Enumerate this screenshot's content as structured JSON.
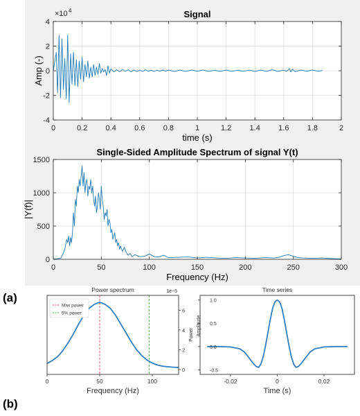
{
  "panel_labels": {
    "a": "(a)",
    "b": "(b)"
  },
  "colors": {
    "matlab_line": "#1f78b4",
    "mpl_line": "#2f7ebf",
    "max_power": "#e0445a",
    "five_pct_power": "#3ca63c",
    "grid": "#dedede",
    "panel_a_background": "#f0f0f0"
  },
  "chart_data": [
    {
      "id": "signal",
      "type": "line",
      "title": "Signal",
      "xlabel": "time (s)",
      "ylabel": "Amp (-)",
      "y_exponent_label": "×10",
      "y_exponent_power": "4",
      "xlim": [
        0,
        2
      ],
      "ylim": [
        -4,
        4
      ],
      "xticks": [
        0,
        0.2,
        0.4,
        0.6,
        0.8,
        1,
        1.2,
        1.4,
        1.6,
        1.8,
        2
      ],
      "xticklabels": [
        "0",
        "0.2",
        "0.4",
        "0.6",
        "0.8",
        "1",
        "1.2",
        "1.4",
        "1.6",
        "1.8",
        "2"
      ],
      "yticks": [
        -4,
        -2,
        0,
        2,
        4
      ],
      "yticklabels": [
        "-4",
        "-2",
        "0",
        "2",
        "4"
      ],
      "grid": true,
      "series": [
        {
          "x": [
            0.0,
            0.02,
            0.03,
            0.04,
            0.05,
            0.06,
            0.07,
            0.08,
            0.09,
            0.1,
            0.11,
            0.12,
            0.13,
            0.14,
            0.15,
            0.16,
            0.17,
            0.18,
            0.19,
            0.2,
            0.21,
            0.22,
            0.23,
            0.24,
            0.25,
            0.26,
            0.27,
            0.28,
            0.29,
            0.3,
            0.31,
            0.32,
            0.33,
            0.34,
            0.35,
            0.36,
            0.37,
            0.38,
            0.39,
            0.4,
            0.42,
            0.44,
            0.46,
            0.48,
            0.5,
            0.52,
            0.54,
            0.56,
            0.58,
            0.6,
            0.62,
            0.64,
            0.66,
            0.68,
            0.7,
            0.72,
            0.74,
            0.76,
            0.78,
            0.8,
            0.84,
            0.88,
            0.92,
            0.96,
            1.0,
            1.04,
            1.08,
            1.12,
            1.16,
            1.2,
            1.24,
            1.28,
            1.32,
            1.36,
            1.4,
            1.44,
            1.48,
            1.52,
            1.56,
            1.6,
            1.62,
            1.64,
            1.65,
            1.66,
            1.68,
            1.72,
            1.76,
            1.8,
            1.84,
            1.87
          ],
          "y": [
            0.0,
            1.5,
            -1.8,
            2.9,
            -2.2,
            2.6,
            -1.5,
            1.0,
            -2.3,
            2.9,
            -2.6,
            1.4,
            -1.1,
            1.5,
            -1.2,
            0.9,
            -1.3,
            0.8,
            -0.7,
            1.1,
            -0.9,
            0.5,
            -0.5,
            0.8,
            -0.6,
            0.3,
            -0.5,
            0.5,
            -0.4,
            0.3,
            -0.3,
            0.6,
            -0.2,
            0.2,
            -0.1,
            0.1,
            -0.4,
            0.4,
            -0.2,
            0.15,
            -0.1,
            0.08,
            -0.08,
            0.1,
            -0.05,
            0.08,
            -0.1,
            0.06,
            -0.08,
            0.05,
            -0.06,
            0.08,
            -0.05,
            0.04,
            -0.06,
            0.05,
            -0.04,
            0.06,
            -0.04,
            0.05,
            -0.06,
            0.05,
            -0.05,
            0.06,
            -0.04,
            0.05,
            -0.05,
            0.04,
            -0.05,
            0.06,
            -0.05,
            0.04,
            -0.05,
            0.05,
            -0.06,
            0.05,
            -0.05,
            0.08,
            -0.06,
            0.05,
            -0.05,
            0.18,
            -0.1,
            0.12,
            -0.08,
            0.05,
            -0.04,
            0.05,
            -0.04,
            0.02
          ]
        }
      ]
    },
    {
      "id": "spectrum",
      "type": "line",
      "title": "Single-Sided Amplitude Spectrum of signal Y(t)",
      "xlabel": "Frequency (Hz)",
      "ylabel": "|Y(f)|",
      "xlim": [
        0,
        300
      ],
      "ylim": [
        0,
        1500
      ],
      "xticks": [
        0,
        50,
        100,
        150,
        200,
        250,
        300
      ],
      "xticklabels": [
        "0",
        "50",
        "100",
        "150",
        "200",
        "250",
        "300"
      ],
      "yticks": [
        0,
        500,
        1000,
        1500
      ],
      "yticklabels": [
        "0",
        "500",
        "1000",
        "1500"
      ],
      "grid": true,
      "series": [
        {
          "x": [
            0,
            5,
            8,
            10,
            12,
            14,
            15,
            16,
            17,
            18,
            19,
            20,
            21,
            22,
            23,
            24,
            25,
            26,
            27,
            28,
            29,
            30,
            31,
            32,
            33,
            34,
            35,
            36,
            37,
            38,
            39,
            40,
            41,
            42,
            43,
            44,
            45,
            46,
            47,
            48,
            49,
            50,
            51,
            52,
            53,
            54,
            55,
            56,
            57,
            58,
            59,
            60,
            61,
            62,
            63,
            64,
            65,
            66,
            67,
            68,
            69,
            70,
            72,
            74,
            76,
            78,
            80,
            82,
            85,
            88,
            90,
            95,
            100,
            105,
            110,
            115,
            120,
            130,
            140,
            150,
            160,
            170,
            180,
            190,
            200,
            210,
            220,
            230,
            235,
            240,
            245,
            250,
            255,
            260,
            270,
            280,
            290,
            300
          ],
          "y": [
            0,
            10,
            20,
            80,
            150,
            300,
            250,
            350,
            200,
            330,
            250,
            400,
            700,
            500,
            900,
            800,
            1100,
            1000,
            1200,
            1100,
            1250,
            1400,
            1100,
            1300,
            1000,
            1150,
            1200,
            950,
            1100,
            1050,
            1200,
            1000,
            1100,
            900,
            800,
            950,
            700,
            800,
            1000,
            900,
            750,
            1100,
            900,
            800,
            600,
            700,
            650,
            750,
            500,
            600,
            550,
            400,
            450,
            300,
            350,
            400,
            250,
            300,
            200,
            250,
            150,
            200,
            120,
            180,
            100,
            60,
            90,
            40,
            70,
            50,
            40,
            45,
            80,
            40,
            35,
            60,
            25,
            30,
            35,
            20,
            30,
            20,
            15,
            25,
            20,
            15,
            25,
            20,
            30,
            55,
            70,
            45,
            25,
            20,
            15,
            20,
            10,
            5
          ]
        }
      ]
    },
    {
      "id": "power-spectrum",
      "type": "line",
      "title": "Power spectrum",
      "xlabel": "Frequency (Hz)",
      "ylabel": "Power",
      "y_exponent_label": "1e−5",
      "xlim": [
        0,
        125
      ],
      "ylim": [
        -0.5,
        7.5
      ],
      "xticks": [
        0,
        50,
        100
      ],
      "xticklabels": [
        "0",
        "50",
        "100"
      ],
      "yticks": [
        0,
        2,
        4,
        6
      ],
      "yticklabels": [
        "0",
        "2",
        "4",
        "6"
      ],
      "grid": false,
      "legend": {
        "placement": "top-left",
        "entries": [
          "Max power",
          "5% power"
        ]
      },
      "vlines": [
        {
          "name": "Max power",
          "x": 50
        },
        {
          "name": "5% power",
          "x": 97
        }
      ],
      "series": [
        {
          "x": [
            0,
            5,
            10,
            15,
            20,
            25,
            30,
            35,
            40,
            45,
            50,
            55,
            60,
            65,
            70,
            75,
            80,
            85,
            90,
            95,
            100,
            105,
            110,
            115,
            120,
            125
          ],
          "y": [
            0.6,
            0.9,
            1.3,
            1.9,
            2.7,
            3.6,
            4.6,
            5.5,
            6.2,
            6.6,
            6.8,
            6.6,
            6.2,
            5.5,
            4.6,
            3.7,
            2.8,
            2.0,
            1.4,
            0.95,
            0.65,
            0.45,
            0.33,
            0.27,
            0.23,
            0.2
          ]
        }
      ]
    },
    {
      "id": "time-series",
      "type": "line",
      "title": "Time series",
      "xlabel": "Time  (s)",
      "ylabel": "Amplitude",
      "xlim": [
        -0.033,
        0.033
      ],
      "ylim": [
        -0.6,
        1.1
      ],
      "xticks": [
        -0.02,
        0,
        0.02
      ],
      "xticklabels": [
        "-0.02",
        "0",
        "0.02"
      ],
      "yticks": [
        -0.5,
        0,
        0.5,
        1
      ],
      "yticklabels": [
        "-0.5",
        "0.0",
        "0.5",
        "1.0"
      ],
      "grid": false,
      "series": [
        {
          "x": [
            -0.03,
            -0.025,
            -0.02,
            -0.016,
            -0.014,
            -0.012,
            -0.01,
            -0.009,
            -0.008,
            -0.007,
            -0.006,
            -0.005,
            -0.004,
            -0.003,
            -0.002,
            -0.001,
            0,
            0.001,
            0.002,
            0.003,
            0.004,
            0.005,
            0.006,
            0.007,
            0.008,
            0.009,
            0.01,
            0.012,
            0.014,
            0.016,
            0.02,
            0.025,
            0.03
          ],
          "y": [
            0,
            0,
            -0.01,
            -0.05,
            -0.12,
            -0.25,
            -0.38,
            -0.43,
            -0.45,
            -0.38,
            -0.22,
            0.02,
            0.3,
            0.58,
            0.82,
            0.96,
            1.0,
            0.96,
            0.82,
            0.58,
            0.3,
            0.02,
            -0.22,
            -0.38,
            -0.45,
            -0.43,
            -0.38,
            -0.25,
            -0.12,
            -0.05,
            -0.01,
            0,
            0
          ]
        }
      ]
    }
  ]
}
